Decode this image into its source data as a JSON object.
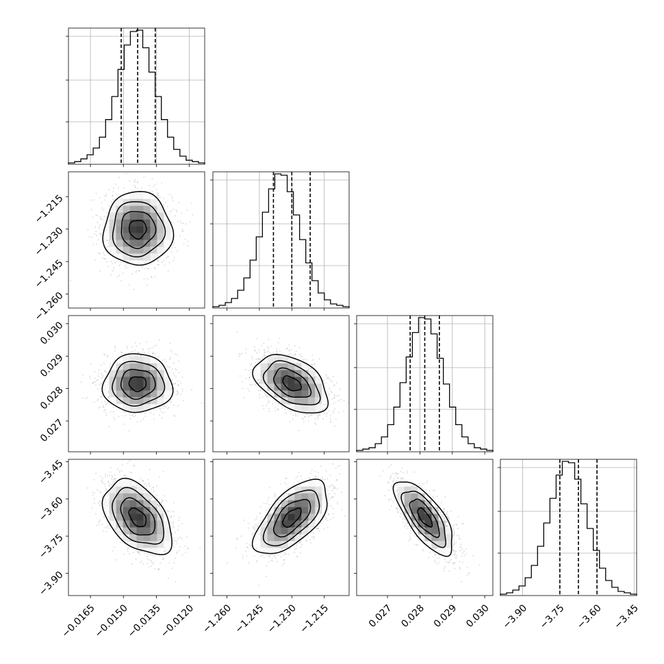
{
  "chart_data": {
    "type": "corner",
    "n_params": 4,
    "style": {
      "line_color": "#000000",
      "grid_color": "#b0b0b0",
      "point_color": "#000000",
      "background": "#ffffff"
    },
    "params": [
      {
        "index": 0,
        "range": [
          -0.0175,
          -0.0113
        ],
        "ticks": [
          -0.0165,
          -0.015,
          -0.0135,
          -0.012
        ],
        "tick_labels": [
          "−0.0165",
          "−0.0150",
          "−0.0135",
          "−0.0120"
        ],
        "quantiles": [
          -0.0151,
          -0.01435,
          -0.01355
        ],
        "mean": -0.01435,
        "sd": 0.00078,
        "hist": [
          1,
          2,
          4,
          7,
          12,
          20,
          33,
          50,
          70,
          88,
          98,
          99,
          86,
          68,
          50,
          33,
          20,
          11,
          6,
          3,
          2,
          1
        ]
      },
      {
        "index": 1,
        "range": [
          -1.2665,
          -1.2035
        ],
        "ticks": [
          -1.26,
          -1.245,
          -1.23,
          -1.215
        ],
        "tick_labels": [
          "−1.260",
          "−1.245",
          "−1.230",
          "−1.215"
        ],
        "quantiles": [
          -1.2385,
          -1.23,
          -1.2215
        ],
        "mean": -1.23,
        "sd": 0.0085,
        "hist": [
          1,
          2,
          4,
          7,
          13,
          22,
          35,
          52,
          70,
          87,
          98,
          97,
          85,
          68,
          50,
          33,
          20,
          11,
          6,
          3,
          2,
          1
        ]
      },
      {
        "index": 2,
        "range": [
          0.02605,
          0.03025
        ],
        "ticks": [
          0.027,
          0.028,
          0.029,
          0.03
        ],
        "tick_labels": [
          "0.027",
          "0.028",
          "0.029",
          "0.030"
        ],
        "quantiles": [
          0.0277,
          0.02815,
          0.0286
        ],
        "mean": 0.02815,
        "sd": 0.00045,
        "hist": [
          1,
          2,
          3,
          6,
          11,
          20,
          33,
          51,
          70,
          88,
          99,
          98,
          87,
          69,
          50,
          33,
          20,
          11,
          6,
          3,
          2,
          1
        ]
      },
      {
        "index": 3,
        "range": [
          -3.99,
          -3.44
        ],
        "ticks": [
          -3.9,
          -3.75,
          -3.6,
          -3.45
        ],
        "tick_labels": [
          "−3.90",
          "−3.75",
          "−3.60",
          "−3.45"
        ],
        "quantiles": [
          -3.75,
          -3.675,
          -3.6
        ],
        "mean": -3.675,
        "sd": 0.075,
        "hist": [
          1,
          2,
          4,
          7,
          13,
          22,
          36,
          53,
          71,
          88,
          98,
          97,
          85,
          67,
          49,
          33,
          20,
          11,
          6,
          3,
          2,
          1
        ]
      }
    ],
    "pairs": [
      {
        "x": 0,
        "y": 1,
        "rho": 0.0
      },
      {
        "x": 0,
        "y": 2,
        "rho": 0.0
      },
      {
        "x": 1,
        "y": 2,
        "rho": -0.45
      },
      {
        "x": 0,
        "y": 3,
        "rho": -0.45
      },
      {
        "x": 1,
        "y": 3,
        "rho": 0.62
      },
      {
        "x": 2,
        "y": 3,
        "rho": -0.72
      }
    ],
    "contour_sigma_levels": [
      0.5,
      1.0,
      1.5,
      2.0
    ],
    "grid": true,
    "x_axis_labels": "bottom row",
    "y_axis_labels": "left column"
  }
}
